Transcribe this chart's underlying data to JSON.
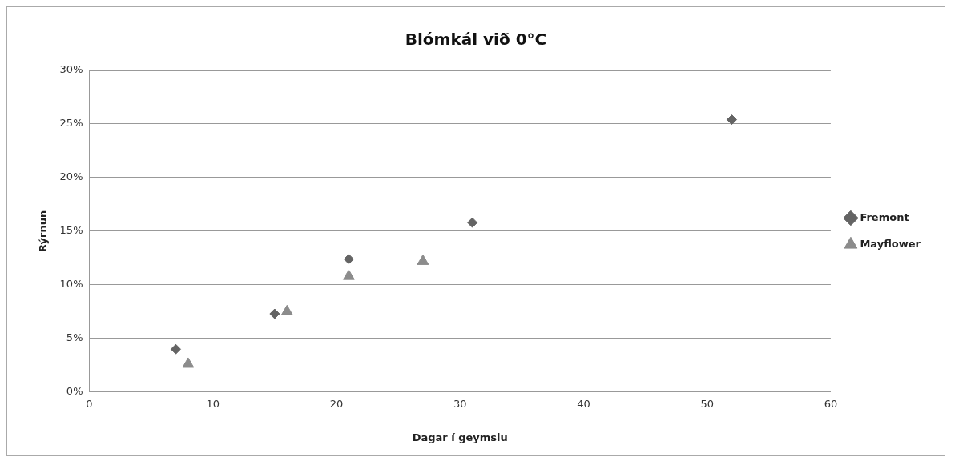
{
  "chart_data": {
    "type": "scatter",
    "title": "Blómkál við 0°C",
    "xlabel": "Dagar í geymslu",
    "ylabel": "Rýrnun",
    "series": [
      {
        "name": "Fremont",
        "color": "#646464",
        "marker": "diamond",
        "x": [
          7,
          15,
          21,
          31,
          52
        ],
        "values": [
          4,
          7.3,
          12.4,
          15.8,
          25.4
        ]
      },
      {
        "name": "Mayflower",
        "color": "#8c8c8c",
        "marker": "triangle",
        "x": [
          8,
          16,
          21,
          27
        ],
        "values": [
          2.6,
          7.5,
          10.8,
          12.2
        ]
      }
    ],
    "xlim": [
      0,
      60
    ],
    "xticks": [
      0,
      10,
      20,
      30,
      40,
      50,
      60
    ],
    "ylim": [
      0,
      30
    ],
    "yticks": [
      {
        "value": 0,
        "label": "0%"
      },
      {
        "value": 5,
        "label": "5%"
      },
      {
        "value": 10,
        "label": "10%"
      },
      {
        "value": 15,
        "label": "15%"
      },
      {
        "value": 20,
        "label": "20%"
      },
      {
        "value": 25,
        "label": "25%"
      },
      {
        "value": 30,
        "label": "30%"
      }
    ],
    "grid": "y",
    "legend": "right"
  }
}
